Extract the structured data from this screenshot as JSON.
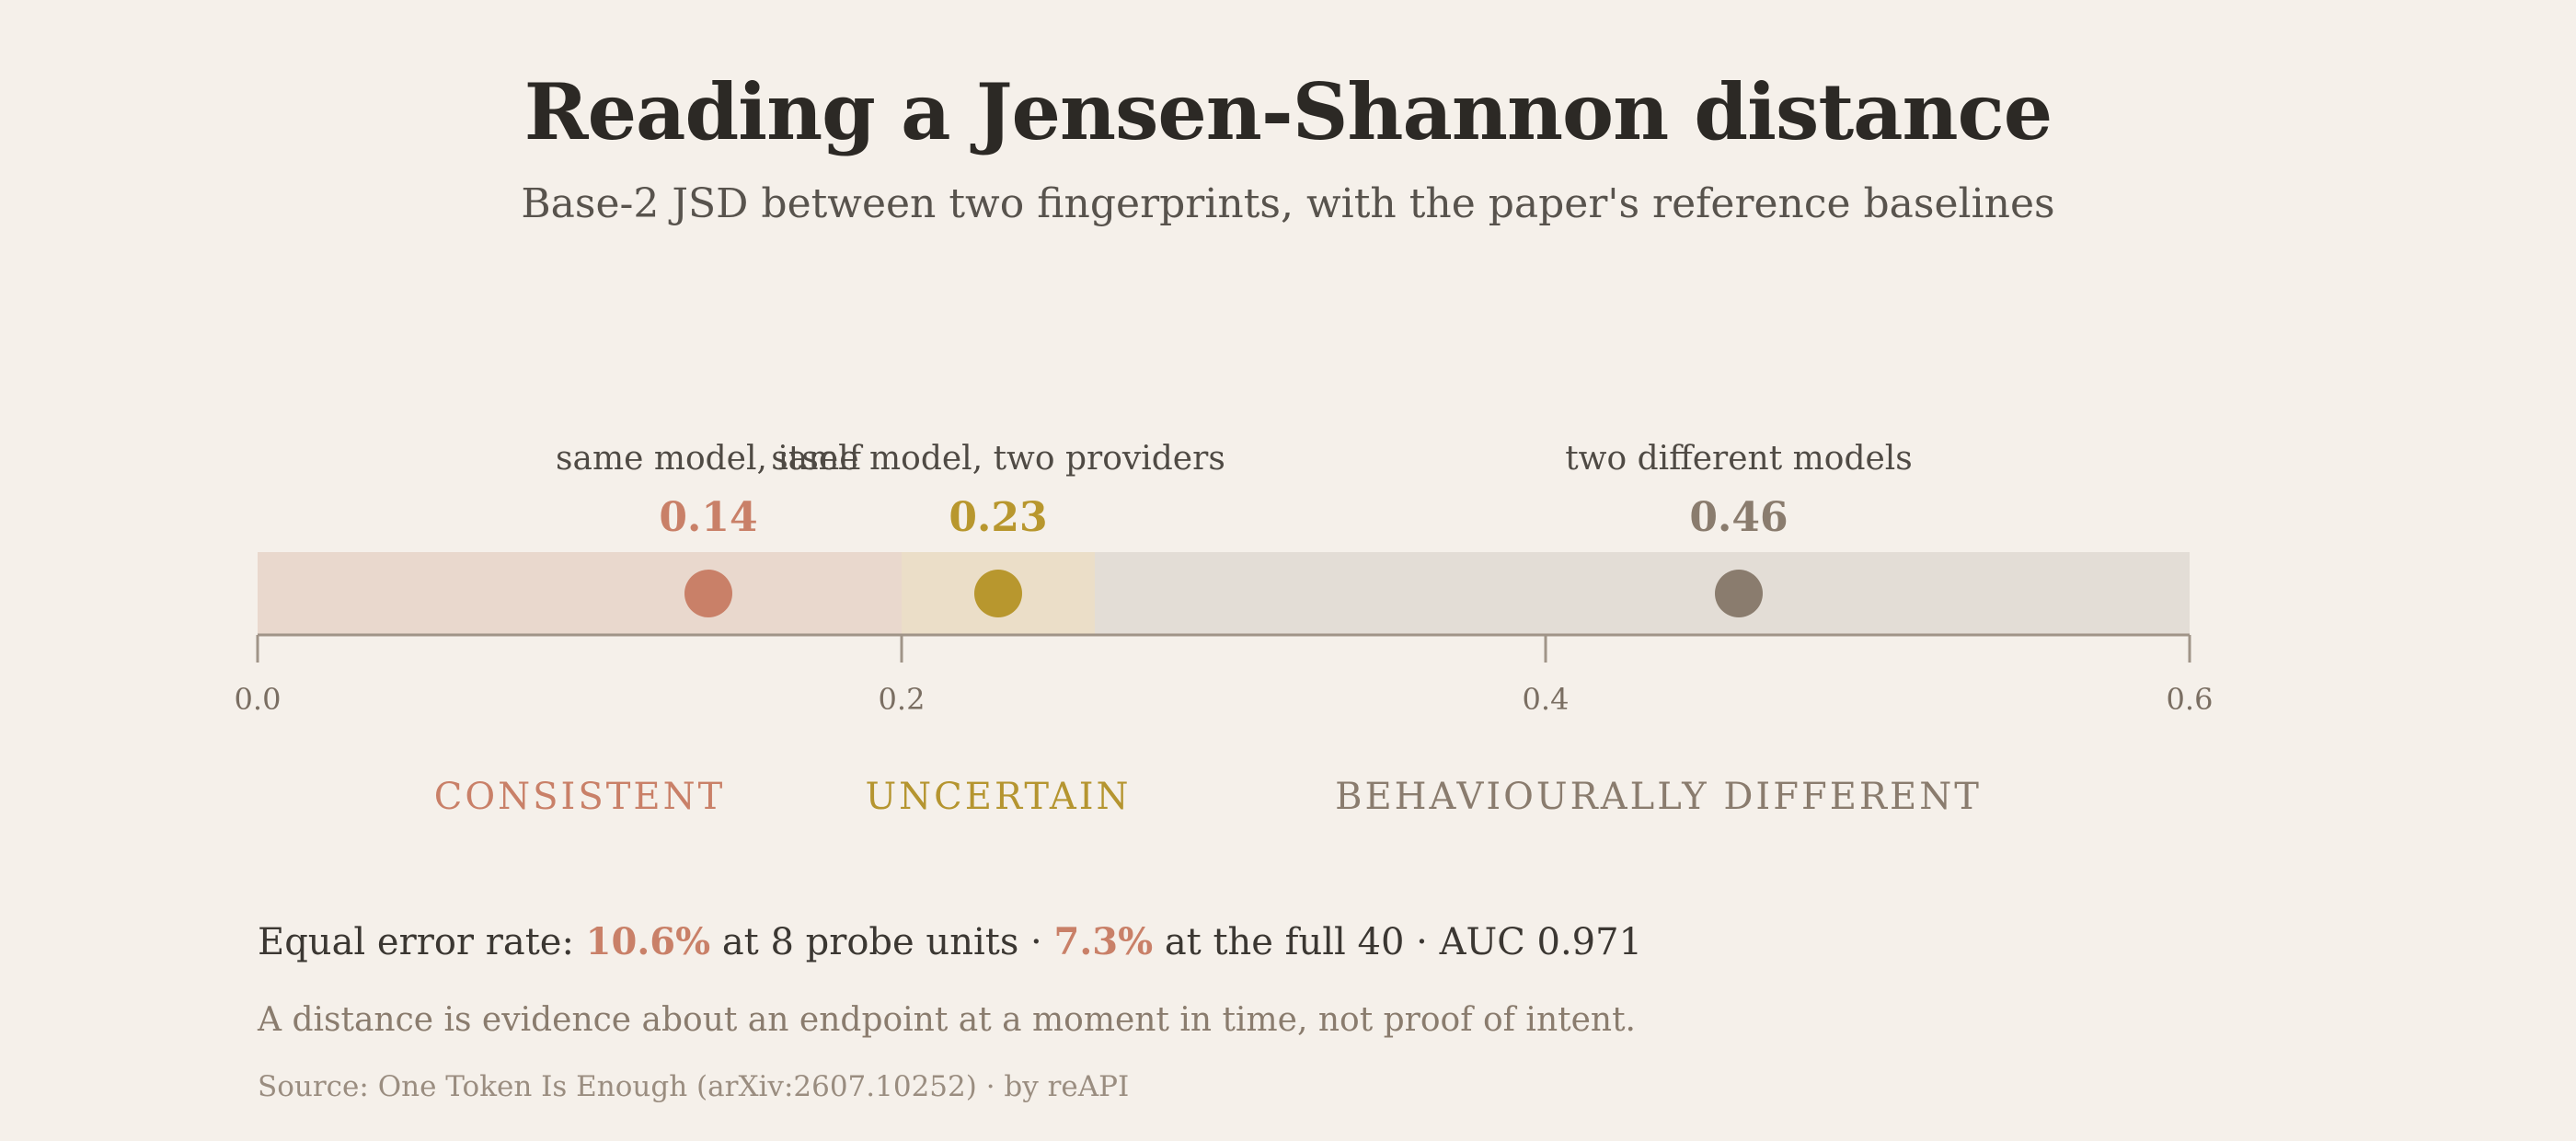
{
  "page": {
    "title": "Reading a Jensen-Shannon distance",
    "subtitle": "Base-2 JSD between two fingerprints, with the paper's reference baselines"
  },
  "chart_data": {
    "type": "scatter",
    "title": "Reading a Jensen-Shannon distance",
    "subtitle": "Base-2 JSD between two fingerprints, with the paper's reference baselines",
    "xlim": [
      0,
      0.6
    ],
    "xticks": [
      "0.0",
      "0.2",
      "0.4",
      "0.6"
    ],
    "zones": [
      {
        "label": "CONSISTENT",
        "from": 0,
        "to": 0.2,
        "color": "#e9d8cd",
        "text_color": "#c98068"
      },
      {
        "label": "UNCERTAIN",
        "from": 0.2,
        "to": 0.26,
        "color": "#ebdec8",
        "text_color": "#b59530"
      },
      {
        "label": "BEHAVIOURALLY DIFFERENT",
        "from": 0.26,
        "to": 0.6,
        "color": "#e3ddd6",
        "text_color": "#8a7c6e"
      }
    ],
    "points": [
      {
        "label": "same model, itself",
        "value": 0.14,
        "display": "0.14",
        "color": "#c98068"
      },
      {
        "label": "same model, two providers",
        "value": 0.23,
        "display": "0.23",
        "color": "#b8972e"
      },
      {
        "label": "two different models",
        "value": 0.46,
        "display": "0.46",
        "color": "#8a7c6e"
      }
    ]
  },
  "stats": {
    "prefix": "Equal error rate: ",
    "eer_8": "10.6%",
    "mid_1": " at 8 probe units · ",
    "eer_40": "7.3%",
    "mid_2": " at the full 40 · AUC 0.971"
  },
  "note": "A distance is evidence about an endpoint at a moment in time, not proof of intent.",
  "source": "Source: One Token Is Enough (arXiv:2607.10252) · by reAPI"
}
